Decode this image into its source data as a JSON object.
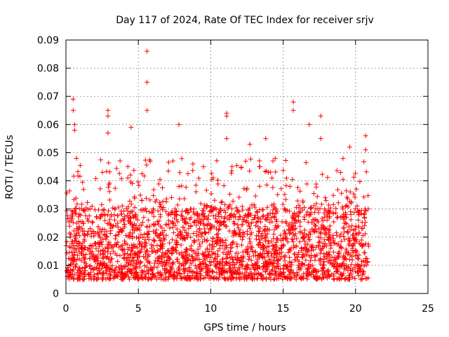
{
  "chart_data": {
    "type": "scatter",
    "title": "Day 117 of 2024, Rate Of TEC Index for receiver srjv",
    "xlabel": "GPS time / hours",
    "ylabel": "ROTI / TECUs",
    "xlim": [
      0,
      25
    ],
    "ylim": [
      0,
      0.09
    ],
    "x_ticks": [
      0,
      5,
      10,
      15,
      20,
      25
    ],
    "y_ticks": [
      0,
      0.01,
      0.02,
      0.03,
      0.04,
      0.05,
      0.06,
      0.07,
      0.08,
      0.09
    ],
    "x_tick_labels": [
      "0",
      "5",
      "10",
      "15",
      "20",
      "25"
    ],
    "y_tick_labels": [
      "0",
      "0.01",
      "0.02",
      "0.03",
      "0.04",
      "0.05",
      "0.06",
      "0.07",
      "0.08",
      "0.09"
    ],
    "grid": true,
    "marker": "+",
    "color": "#ff0000",
    "series": [
      {
        "name": "ROTI",
        "x_range": [
          0,
          20.9
        ],
        "typical_range": [
          0.005,
          0.03
        ],
        "outliers": [
          {
            "x": 0.5,
            "y": 0.069
          },
          {
            "x": 0.5,
            "y": 0.065
          },
          {
            "x": 0.6,
            "y": 0.06
          },
          {
            "x": 0.6,
            "y": 0.058
          },
          {
            "x": 2.9,
            "y": 0.065
          },
          {
            "x": 2.9,
            "y": 0.063
          },
          {
            "x": 2.9,
            "y": 0.057
          },
          {
            "x": 4.5,
            "y": 0.059
          },
          {
            "x": 5.6,
            "y": 0.086
          },
          {
            "x": 5.6,
            "y": 0.075
          },
          {
            "x": 5.6,
            "y": 0.065
          },
          {
            "x": 7.8,
            "y": 0.06
          },
          {
            "x": 11.1,
            "y": 0.064
          },
          {
            "x": 11.1,
            "y": 0.063
          },
          {
            "x": 11.1,
            "y": 0.055
          },
          {
            "x": 12.7,
            "y": 0.053
          },
          {
            "x": 13.8,
            "y": 0.055
          },
          {
            "x": 15.7,
            "y": 0.068
          },
          {
            "x": 15.7,
            "y": 0.065
          },
          {
            "x": 16.8,
            "y": 0.06
          },
          {
            "x": 17.6,
            "y": 0.063
          },
          {
            "x": 17.6,
            "y": 0.055
          },
          {
            "x": 19.6,
            "y": 0.052
          },
          {
            "x": 20.7,
            "y": 0.056
          },
          {
            "x": 20.7,
            "y": 0.051
          }
        ]
      }
    ]
  }
}
